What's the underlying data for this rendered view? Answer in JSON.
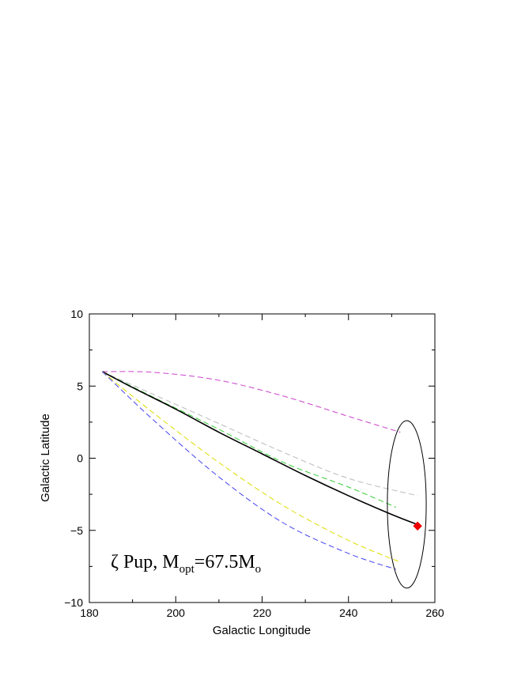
{
  "chart_data": {
    "type": "line",
    "xlabel": "Galactic Longitude",
    "ylabel": "Galactic Latitude",
    "xlim": [
      180,
      260
    ],
    "ylim": [
      -10,
      10
    ],
    "xticks": [
      180,
      200,
      220,
      240,
      260
    ],
    "yticks": [
      10,
      5,
      0,
      -5,
      -10
    ],
    "xtick_labels": [
      "180",
      "200",
      "220",
      "240",
      "260"
    ],
    "ytick_labels": [
      "10",
      "5",
      "0",
      "−5",
      "−10"
    ],
    "grid": false,
    "annotation": {
      "symbol": "ζ",
      "star": " Pup, M",
      "sub1": "opt",
      "mid": "=67.5M",
      "sub2": "o"
    },
    "series": [
      {
        "color": "#cc44cc",
        "dash": "dashed",
        "x": [
          183,
          195,
          210,
          225,
          240,
          252
        ],
        "y": [
          6,
          5.95,
          5.4,
          4.3,
          2.9,
          1.8
        ]
      },
      {
        "color": "#bbbbbb",
        "dash": "dashed",
        "x": [
          183,
          195,
          210,
          225,
          240,
          256
        ],
        "y": [
          6,
          4.4,
          2.4,
          0.4,
          -1.4,
          -2.6
        ]
      },
      {
        "color": "#33cc33",
        "dash": "dashed",
        "x": [
          183,
          195,
          210,
          225,
          240,
          251
        ],
        "y": [
          6,
          4.2,
          2.0,
          -0.3,
          -2.0,
          -3.4
        ]
      },
      {
        "color": "#000000",
        "dash": "solid",
        "x": [
          183,
          190,
          200,
          210,
          220,
          230,
          240,
          250,
          256
        ],
        "y": [
          6,
          4.9,
          3.4,
          1.8,
          0.3,
          -1.2,
          -2.6,
          -3.9,
          -4.6
        ]
      },
      {
        "color": "#dddd00",
        "dash": "dashed",
        "x": [
          183,
          195,
          210,
          225,
          240,
          252
        ],
        "y": [
          6,
          3.1,
          -0.3,
          -3.3,
          -5.7,
          -7.2
        ]
      },
      {
        "color": "#4444ee",
        "dash": "dashed",
        "x": [
          183,
          195,
          210,
          225,
          240,
          251
        ],
        "y": [
          6,
          2.6,
          -1.3,
          -4.5,
          -6.6,
          -7.7
        ]
      }
    ],
    "marker": {
      "x": 256,
      "y": -4.7,
      "color": "#ee0000",
      "shape": "diamond"
    },
    "ellipse": {
      "cx": 253.5,
      "cy": -3.2,
      "rx": 4.5,
      "ry": 5.8,
      "color": "#000000"
    }
  }
}
